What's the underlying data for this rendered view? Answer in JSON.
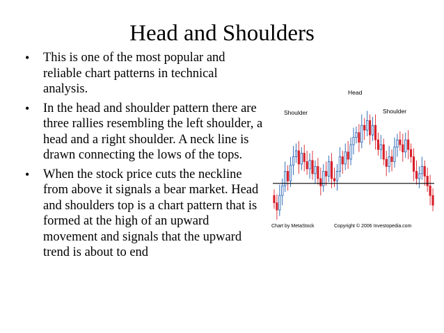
{
  "slide": {
    "title": "Head and Shoulders",
    "bullets": [
      "This is one of the most popular and reliable chart patterns in technical analysis.",
      "In the head and shoulder pattern there are three rallies resembling the left shoulder, a head and a right shoulder. A neck line is drawn connecting the lows of the tops.",
      "When the stock price cuts the neckline from above it signals a bear market. Head and shoulders top  is a chart pattern that is formed at the high of an upward movement and signals that the upward trend is about to end"
    ]
  },
  "figure": {
    "label_left_shoulder": "Shoulder",
    "label_head": "Head",
    "label_right_shoulder": "Shoulder",
    "credit_left": "Chart by MetaStock",
    "credit_right": "Copyright © 2006 Investopedia.com",
    "colors": {
      "up": "#1f5fb0",
      "down": "#d8202a",
      "neckline": "#000000"
    }
  },
  "chart_data": {
    "type": "candlestick",
    "y_range": [
      0,
      100
    ],
    "neckline_level": 30,
    "closes": [
      14,
      8,
      20,
      28,
      40,
      32,
      45,
      52,
      57,
      46,
      55,
      48,
      42,
      49,
      38,
      44,
      34,
      28,
      40,
      36,
      48,
      34,
      32,
      40,
      52,
      46,
      56,
      50,
      62,
      68,
      72,
      64,
      78,
      74,
      82,
      70,
      78,
      66,
      58,
      62,
      50,
      44,
      52,
      48,
      60,
      66,
      62,
      56,
      66,
      58,
      52,
      40,
      34,
      38,
      44,
      36,
      28,
      20,
      12
    ]
  }
}
